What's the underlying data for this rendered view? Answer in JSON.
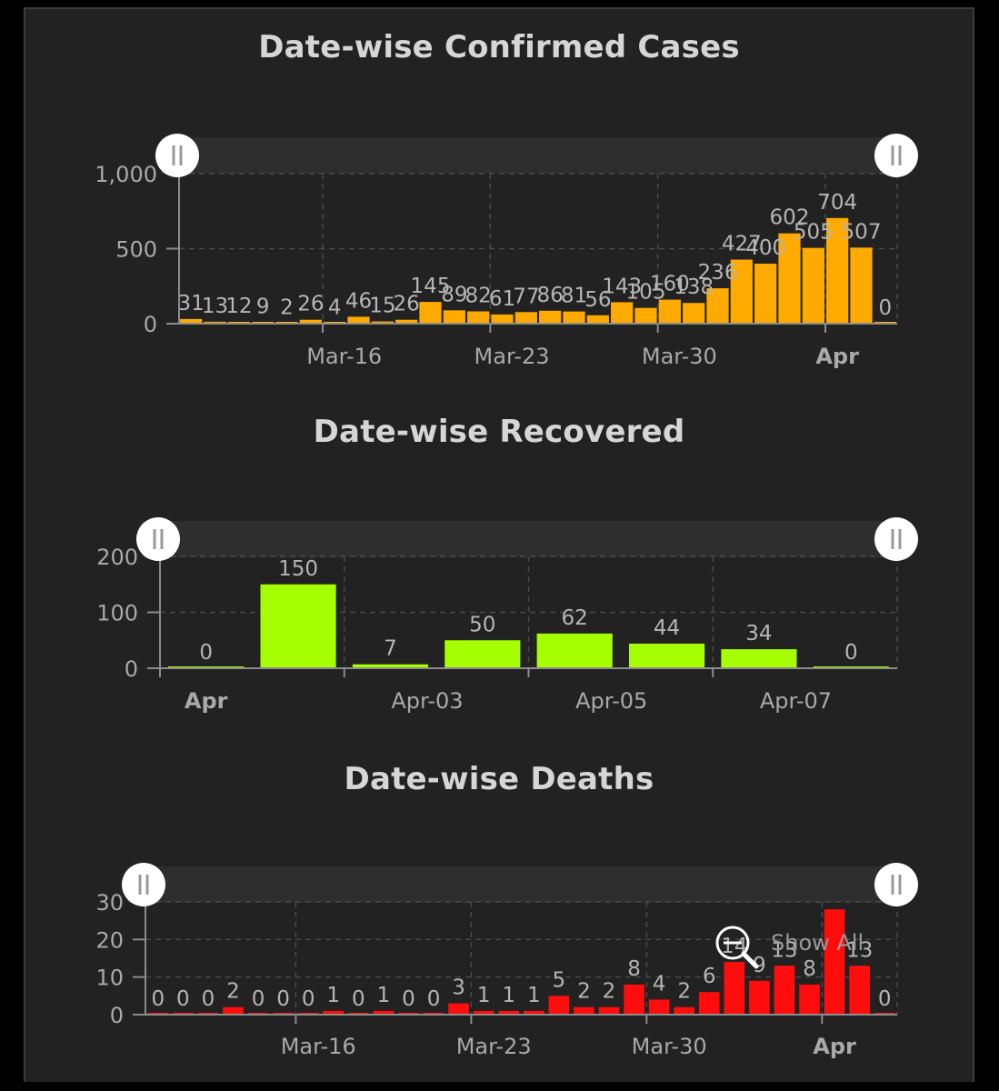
{
  "charts": [
    {
      "id": "confirmed",
      "title": "Date-wise Confirmed Cases",
      "chart_data": {
        "type": "bar",
        "title": "Date-wise Confirmed Cases",
        "xlabel": "",
        "ylabel": "",
        "ylim": [
          0,
          1000
        ],
        "yticks": [
          "0",
          "500",
          "1,000"
        ],
        "ytick_values": [
          0,
          500,
          1000
        ],
        "x_tick_labels": [
          {
            "label": "Mar-16",
            "bar_index": 6,
            "bold": false
          },
          {
            "label": "Mar-23",
            "bar_index": 13,
            "bold": false
          },
          {
            "label": "Mar-30",
            "bar_index": 20,
            "bold": false
          },
          {
            "label": "Apr",
            "bar_index": 27,
            "bold": true
          }
        ],
        "grid": true,
        "color": "#ffaa00",
        "values": [
          31,
          13,
          12,
          9,
          2,
          26,
          4,
          46,
          15,
          26,
          145,
          89,
          82,
          61,
          77,
          86,
          81,
          56,
          143,
          105,
          160,
          138,
          236,
          427,
          400,
          602,
          505,
          704,
          507,
          0
        ],
        "labels": [
          "31",
          "13",
          "12",
          "9",
          "2",
          "26",
          "4",
          "46",
          "15",
          "26",
          "145",
          "89",
          "82",
          "61",
          "77",
          "86",
          "81",
          "56",
          "143",
          "105",
          "160",
          "138",
          "236",
          "427",
          "400",
          "602",
          "505",
          "704",
          "507",
          "0"
        ]
      }
    },
    {
      "id": "recovered",
      "title": "Date-wise Recovered",
      "chart_data": {
        "type": "bar",
        "title": "Date-wise Recovered",
        "xlabel": "",
        "ylabel": "",
        "ylim": [
          0,
          200
        ],
        "yticks": [
          "0",
          "100",
          "200"
        ],
        "ytick_values": [
          0,
          100,
          200
        ],
        "x_tick_labels": [
          {
            "label": "Apr",
            "bar_index": 0,
            "bold": true
          },
          {
            "label": "Apr-03",
            "bar_index": 2,
            "bold": false
          },
          {
            "label": "Apr-05",
            "bar_index": 4,
            "bold": false
          },
          {
            "label": "Apr-07",
            "bar_index": 6,
            "bold": false
          }
        ],
        "grid": true,
        "color": "#a6ff00",
        "values": [
          0,
          150,
          7,
          50,
          62,
          44,
          34,
          0
        ],
        "labels": [
          "0",
          "150",
          "7",
          "50",
          "62",
          "44",
          "34",
          "0"
        ]
      }
    },
    {
      "id": "deaths",
      "title": "Date-wise Deaths",
      "show_all": "Show All",
      "chart_data": {
        "type": "bar",
        "title": "Date-wise Deaths",
        "xlabel": "",
        "ylabel": "",
        "ylim": [
          0,
          30
        ],
        "yticks": [
          "0",
          "10",
          "20",
          "30"
        ],
        "ytick_values": [
          0,
          10,
          20,
          30
        ],
        "x_tick_labels": [
          {
            "label": "Mar-16",
            "bar_index": 6,
            "bold": false
          },
          {
            "label": "Mar-23",
            "bar_index": 13,
            "bold": false
          },
          {
            "label": "Mar-30",
            "bar_index": 20,
            "bold": false
          },
          {
            "label": "Apr",
            "bar_index": 27,
            "bold": true
          }
        ],
        "grid": true,
        "color": "#ff0d0d",
        "values": [
          0,
          0,
          0,
          2,
          0,
          0,
          0,
          1,
          0,
          1,
          0,
          0,
          3,
          1,
          1,
          1,
          5,
          2,
          2,
          8,
          4,
          2,
          6,
          14,
          9,
          13,
          8,
          28,
          13,
          0
        ],
        "labels": [
          "0",
          "0",
          "0",
          "2",
          "0",
          "0",
          "0",
          "1",
          "0",
          "1",
          "0",
          "0",
          "3",
          "1",
          "1",
          "1",
          "5",
          "2",
          "2",
          "8",
          "4",
          "2",
          "6",
          "14",
          "9",
          "13",
          "8",
          "",
          "13",
          "0"
        ]
      }
    }
  ],
  "icons": {
    "scroll_grip": "scrollbar-grip-icon",
    "zoom": "zoom-magnifier-icon"
  }
}
